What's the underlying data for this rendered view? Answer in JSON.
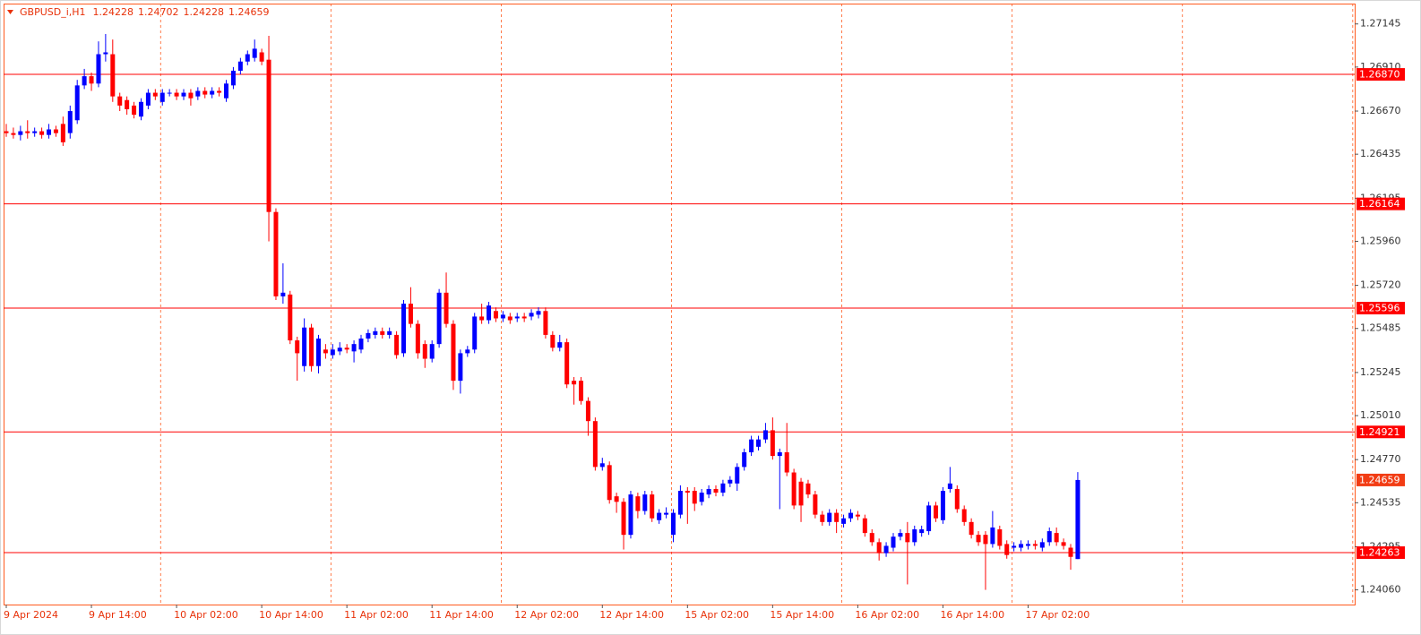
{
  "chart_data": {
    "type": "candlestick",
    "title": "GBPUSD_i,H1",
    "categories": [
      "9 Apr 2024",
      null,
      null,
      null,
      null,
      null,
      null,
      null,
      null,
      null,
      null,
      null,
      "9 Apr 14:00",
      null,
      null,
      null,
      null,
      null,
      null,
      null,
      null,
      null,
      null,
      null,
      "10 Apr 02:00",
      null,
      null,
      null,
      null,
      null,
      null,
      null,
      null,
      null,
      null,
      null,
      "10 Apr 14:00",
      null,
      null,
      null,
      null,
      null,
      null,
      null,
      null,
      null,
      null,
      null,
      "11 Apr 02:00",
      null,
      null,
      null,
      null,
      null,
      null,
      null,
      null,
      null,
      null,
      null,
      "11 Apr 14:00",
      null,
      null,
      null,
      null,
      null,
      null,
      null,
      null,
      null,
      null,
      null,
      "12 Apr 02:00",
      null,
      null,
      null,
      null,
      null,
      null,
      null,
      null,
      null,
      null,
      null,
      "12 Apr 14:00",
      null,
      null,
      null,
      null,
      null,
      null,
      null,
      null,
      null,
      null,
      null,
      "15 Apr 02:00",
      null,
      null,
      null,
      null,
      null,
      null,
      null,
      null,
      null,
      null,
      null,
      "15 Apr 14:00",
      null,
      null,
      null,
      null,
      null,
      null,
      null,
      null,
      null,
      null,
      null,
      "16 Apr 02:00",
      null,
      null,
      null,
      null,
      null,
      null,
      null,
      null,
      null,
      null,
      null,
      "16 Apr 14:00",
      null,
      null,
      null,
      null,
      null,
      null,
      null,
      null,
      null,
      null,
      null,
      "17 Apr 02:00",
      null,
      null,
      null,
      null,
      null,
      null,
      null
    ],
    "open": [
      1.2656,
      1.2655,
      1.2654,
      1.2656,
      1.2655,
      1.2656,
      1.2654,
      1.2657,
      1.266,
      1.2655,
      1.2662,
      1.2681,
      1.2686,
      1.2682,
      1.2698,
      1.2698,
      1.2675,
      1.2673,
      1.267,
      1.2664,
      1.267,
      1.2677,
      1.2672,
      1.2677,
      1.2677,
      1.2675,
      1.2677,
      1.2675,
      1.2678,
      1.2676,
      1.2678,
      1.2674,
      1.2681,
      1.2689,
      1.2694,
      1.2696,
      1.2699,
      1.2695,
      1.2612,
      1.2566,
      1.2567,
      1.2542,
      1.2528,
      1.2549,
      1.2528,
      1.2537,
      1.2534,
      1.2536,
      1.2538,
      1.2536,
      1.2537,
      1.2543,
      1.2545,
      1.2547,
      1.2545,
      1.2545,
      1.2535,
      1.2562,
      1.2551,
      1.254,
      1.2532,
      1.254,
      1.2568,
      1.2551,
      1.252,
      1.2535,
      1.2537,
      1.2555,
      1.2553,
      1.2558,
      1.2554,
      1.2555,
      1.2554,
      1.2555,
      1.2555,
      1.2556,
      1.2558,
      1.2545,
      1.2538,
      1.2541,
      1.252,
      1.252,
      1.2509,
      1.2498,
      1.2473,
      1.2474,
      1.2457,
      1.2454,
      1.2436,
      1.2457,
      1.2449,
      1.2458,
      1.2444,
      1.2447,
      1.2436,
      1.2447,
      1.246,
      1.246,
      1.2454,
      1.2458,
      1.2461,
      1.2459,
      1.2464,
      1.2464,
      1.2473,
      1.2481,
      1.2484,
      1.2488,
      1.2493,
      1.2479,
      1.2481,
      1.247,
      1.2465,
      1.2464,
      1.2458,
      1.2447,
      1.2443,
      1.2448,
      1.2442,
      1.2445,
      1.2447,
      1.2445,
      1.2437,
      1.2432,
      1.2426,
      1.2429,
      1.2435,
      1.2437,
      1.2432,
      1.2437,
      1.2438,
      1.2452,
      1.2444,
      1.2461,
      1.2461,
      1.245,
      1.2443,
      1.2436,
      1.2436,
      1.2431,
      1.2439,
      1.2431,
      1.2429,
      1.2429,
      1.243,
      1.2431,
      1.2429,
      1.2432,
      1.2437,
      1.2432,
      1.2429,
      1.24228
    ],
    "high": [
      1.266,
      1.2658,
      1.2659,
      1.2662,
      1.2658,
      1.2658,
      1.266,
      1.2659,
      1.2664,
      1.267,
      1.2684,
      1.269,
      1.2688,
      1.2705,
      1.2709,
      1.2706,
      1.2677,
      1.2675,
      1.2672,
      1.2674,
      1.2679,
      1.2679,
      1.2679,
      1.2679,
      1.2679,
      1.2679,
      1.2679,
      1.268,
      1.268,
      1.268,
      1.268,
      1.2684,
      1.2691,
      1.2696,
      1.27,
      1.2706,
      1.2701,
      1.2708,
      1.2614,
      1.2584,
      1.2569,
      1.2544,
      1.2554,
      1.2551,
      1.2545,
      1.254,
      1.254,
      1.2541,
      1.254,
      1.2542,
      1.2545,
      1.2548,
      1.2549,
      1.2549,
      1.2549,
      1.2547,
      1.2564,
      1.2571,
      1.2553,
      1.2542,
      1.2542,
      1.257,
      1.2579,
      1.2553,
      1.2537,
      1.2539,
      1.2557,
      1.2562,
      1.2563,
      1.256,
      1.2558,
      1.2557,
      1.2557,
      1.2557,
      1.2559,
      1.256,
      1.256,
      1.2547,
      1.2545,
      1.2543,
      1.2522,
      1.2522,
      1.2511,
      1.25,
      1.2478,
      1.2476,
      1.2459,
      1.2456,
      1.246,
      1.2459,
      1.246,
      1.246,
      1.245,
      1.2451,
      1.245,
      1.2463,
      1.2462,
      1.2462,
      1.2461,
      1.2463,
      1.2463,
      1.2466,
      1.2468,
      1.2475,
      1.2483,
      1.249,
      1.249,
      1.2497,
      1.25,
      1.2483,
      1.2497,
      1.2472,
      1.2467,
      1.2466,
      1.246,
      1.2449,
      1.245,
      1.245,
      1.2447,
      1.245,
      1.2449,
      1.2447,
      1.2439,
      1.2434,
      1.2432,
      1.2437,
      1.2439,
      1.2443,
      1.2441,
      1.2441,
      1.2454,
      1.2454,
      1.2462,
      1.2473,
      1.2463,
      1.2452,
      1.2445,
      1.2438,
      1.2438,
      1.2449,
      1.2441,
      1.2433,
      1.2432,
      1.2433,
      1.2433,
      1.2433,
      1.2434,
      1.244,
      1.244,
      1.2434,
      1.2431,
      1.24702
    ],
    "low": [
      1.2653,
      1.2652,
      1.2651,
      1.2652,
      1.2653,
      1.2652,
      1.2652,
      1.2653,
      1.2648,
      1.2652,
      1.266,
      1.2679,
      1.2678,
      1.268,
      1.2694,
      1.2672,
      1.2667,
      1.2665,
      1.2663,
      1.2662,
      1.2668,
      1.2673,
      1.267,
      1.2675,
      1.2673,
      1.2673,
      1.267,
      1.2673,
      1.2674,
      1.2674,
      1.2675,
      1.2672,
      1.2679,
      1.2687,
      1.2692,
      1.2694,
      1.2692,
      1.2596,
      1.2564,
      1.2562,
      1.254,
      1.252,
      1.2525,
      1.2525,
      1.2524,
      1.2532,
      1.2532,
      1.2534,
      1.2535,
      1.253,
      1.2535,
      1.2541,
      1.2543,
      1.2543,
      1.2543,
      1.2532,
      1.2533,
      1.2549,
      1.2532,
      1.2527,
      1.253,
      1.2538,
      1.2549,
      1.2515,
      1.2513,
      1.2533,
      1.2535,
      1.2551,
      1.2551,
      1.2552,
      1.2552,
      1.2551,
      1.2552,
      1.2552,
      1.2553,
      1.2554,
      1.2543,
      1.2536,
      1.2536,
      1.2516,
      1.2507,
      1.2507,
      1.249,
      1.2471,
      1.2471,
      1.2453,
      1.2448,
      1.2428,
      1.2434,
      1.2445,
      1.2447,
      1.2443,
      1.2442,
      1.2445,
      1.2432,
      1.2445,
      1.2442,
      1.2449,
      1.2452,
      1.2456,
      1.2457,
      1.2457,
      1.2462,
      1.246,
      1.2471,
      1.2479,
      1.2482,
      1.2486,
      1.2477,
      1.245,
      1.2468,
      1.245,
      1.2443,
      1.2456,
      1.2445,
      1.2441,
      1.2441,
      1.2437,
      1.244,
      1.2443,
      1.2444,
      1.2435,
      1.243,
      1.2422,
      1.2424,
      1.2427,
      1.2433,
      1.2409,
      1.243,
      1.2435,
      1.2436,
      1.2443,
      1.2442,
      1.2459,
      1.2448,
      1.2441,
      1.2434,
      1.243,
      1.2406,
      1.2429,
      1.2428,
      1.2423,
      1.2427,
      1.2427,
      1.2428,
      1.2428,
      1.2427,
      1.243,
      1.243,
      1.2428,
      1.2417,
      1.24228
    ],
    "close": [
      1.2655,
      1.2654,
      1.2656,
      1.2655,
      1.2656,
      1.2654,
      1.2657,
      1.2655,
      1.265,
      1.2667,
      1.2681,
      1.2686,
      1.2682,
      1.2698,
      1.2699,
      1.2675,
      1.267,
      1.2668,
      1.2665,
      1.2672,
      1.2677,
      1.2675,
      1.2677,
      1.2677,
      1.2675,
      1.2677,
      1.2674,
      1.2678,
      1.2676,
      1.2678,
      1.2677,
      1.2682,
      1.2689,
      1.2694,
      1.2698,
      1.2701,
      1.2694,
      1.2612,
      1.2566,
      1.2568,
      1.2542,
      1.2535,
      1.2549,
      1.2528,
      1.2543,
      1.2535,
      1.2537,
      1.2538,
      1.2537,
      1.254,
      1.2543,
      1.2546,
      1.2547,
      1.2545,
      1.2547,
      1.2534,
      1.2562,
      1.2551,
      1.2535,
      1.2532,
      1.254,
      1.2568,
      1.2551,
      1.252,
      1.2535,
      1.2537,
      1.2555,
      1.2553,
      1.2561,
      1.2554,
      1.2556,
      1.2553,
      1.2555,
      1.2554,
      1.2557,
      1.2558,
      1.2545,
      1.2538,
      1.2541,
      1.2518,
      1.2518,
      1.2509,
      1.2498,
      1.2473,
      1.2475,
      1.2455,
      1.2454,
      1.2436,
      1.2458,
      1.2449,
      1.2458,
      1.2445,
      1.2448,
      1.2448,
      1.2448,
      1.246,
      1.2459,
      1.2453,
      1.2459,
      1.2461,
      1.2459,
      1.2464,
      1.2466,
      1.2473,
      1.2481,
      1.2488,
      1.2488,
      1.2493,
      1.2479,
      1.2481,
      1.247,
      1.2452,
      1.2452,
      1.2458,
      1.2447,
      1.2443,
      1.2448,
      1.2443,
      1.2445,
      1.2448,
      1.2446,
      1.2437,
      1.2432,
      1.2426,
      1.243,
      1.2435,
      1.2437,
      1.2432,
      1.2439,
      1.2439,
      1.2452,
      1.2445,
      1.246,
      1.2464,
      1.245,
      1.2443,
      1.2436,
      1.2432,
      1.2431,
      1.244,
      1.243,
      1.2425,
      1.243,
      1.2431,
      1.2431,
      1.243,
      1.2432,
      1.2438,
      1.2432,
      1.243,
      1.2424,
      1.24659
    ],
    "up_color": "#0000ff",
    "down_color": "#ff0000",
    "ylim": [
      1.2398,
      1.27256
    ],
    "yticks": [
      1.27145,
      {
        "value": 1.2691,
        "label": "1.26910"
      },
      {
        "value": 1.2667,
        "label": "1.26670"
      },
      1.26435,
      1.26195,
      {
        "value": 1.2596,
        "label": "1.25960"
      },
      {
        "value": 1.2572,
        "label": "1.25720"
      },
      1.25485,
      1.25245,
      {
        "value": 1.2501,
        "label": "1.25010"
      },
      {
        "value": 1.2477,
        "label": "1.24770"
      },
      1.24535,
      1.24295,
      {
        "value": 1.2406,
        "label": "1.24060"
      }
    ],
    "levels": [
      {
        "value": 1.2687,
        "label": "1.26870"
      },
      1.26164,
      1.25596,
      1.24921,
      1.24263
    ],
    "level_color": "#ff0000",
    "grid": true
  }
}
